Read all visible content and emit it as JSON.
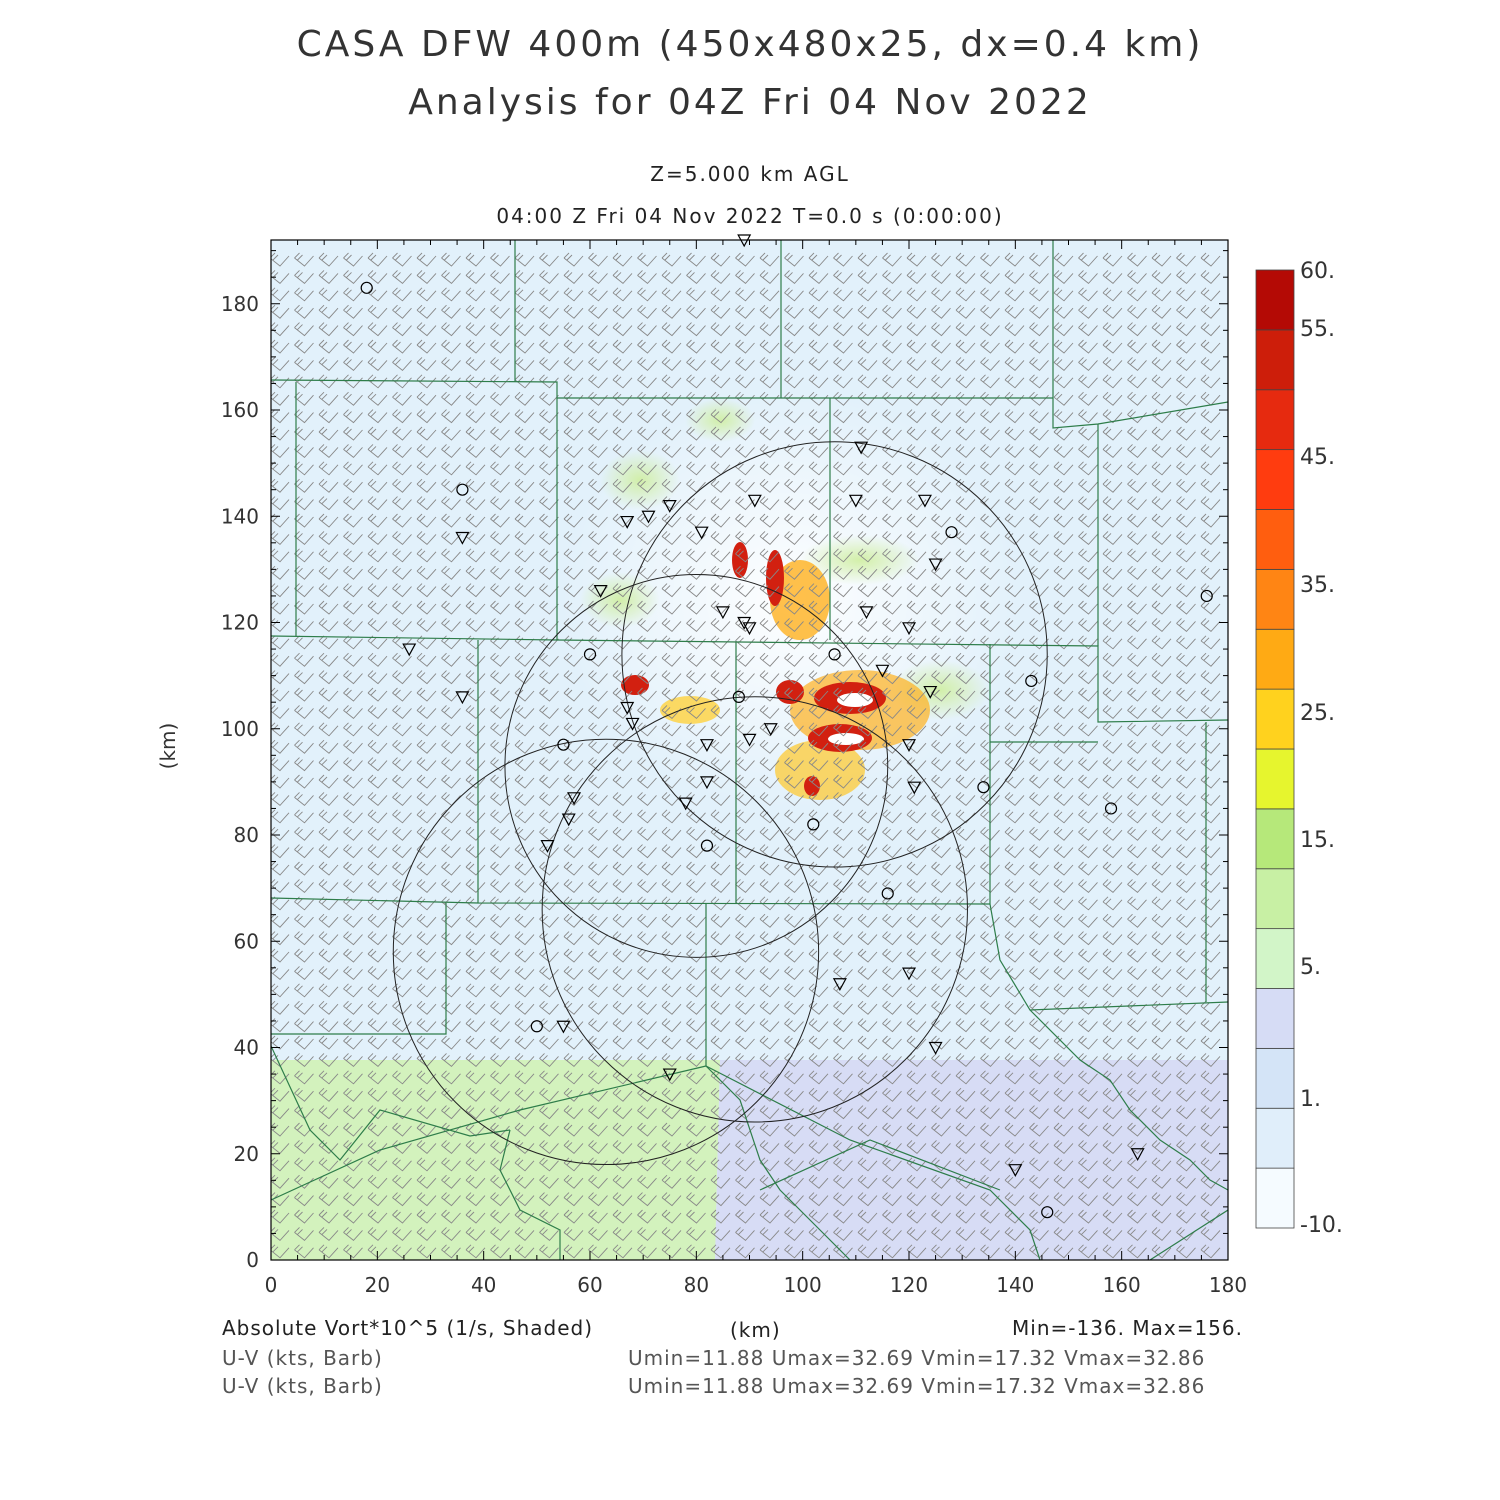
{
  "header": {
    "title_line1": "CASA DFW 400m (450x480x25, dx=0.4 km)",
    "title_line2": "Analysis for 04Z Fri 04 Nov 2022",
    "level": "Z=5.000 km AGL",
    "valid_time": "04:00 Z Fri 04 Nov 2022    T=0.0 s (0:00:00)"
  },
  "axes": {
    "x_label": "(km)",
    "y_label": "(km)",
    "x_ticks": [
      "0",
      "20",
      "40",
      "60",
      "80",
      "100",
      "120",
      "140",
      "160",
      "180"
    ],
    "y_ticks": [
      "0",
      "20",
      "40",
      "60",
      "80",
      "100",
      "120",
      "140",
      "160",
      "180"
    ],
    "x_range": [
      0,
      180
    ],
    "y_range": [
      0,
      192
    ]
  },
  "colorbar": {
    "labels": [
      "60.",
      "55.",
      "45.",
      "35.",
      "25.",
      "15.",
      "5.",
      "1.",
      "-10."
    ],
    "colors": [
      "#f5fbff",
      "#e0eefa",
      "#d4e4f7",
      "#d6dcf5",
      "#d2f5c8",
      "#c8f0a4",
      "#b6e87a",
      "#e6f52e",
      "#ffd21e",
      "#ffaa14",
      "#ff8514",
      "#ff5e0f",
      "#ff3c0f",
      "#e62a0f",
      "#cd1e0a",
      "#b40a05"
    ]
  },
  "footer": {
    "field": "Absolute Vort*10^5 (1/s, Shaded)",
    "x_unit": "(km)",
    "minmax": "Min=-136. Max=156.",
    "barb_label_1": "U-V (kts, Barb)",
    "barb_stats_1": "Umin=11.88 Umax=32.69 Vmin=17.32 Vmax=32.86",
    "barb_label_2": "U-V (kts, Barb)",
    "barb_stats_2": "Umin=11.88 Umax=32.69 Vmin=17.32 Vmax=32.86"
  },
  "map": {
    "radar_rings": [
      {
        "cx": 80,
        "cy": 93,
        "r": 36
      },
      {
        "cx": 63,
        "cy": 58,
        "r": 40
      },
      {
        "cx": 91,
        "cy": 66,
        "r": 40
      },
      {
        "cx": 106,
        "cy": 114,
        "r": 40
      }
    ],
    "stations_triangle": [
      [
        89,
        192
      ],
      [
        36,
        136
      ],
      [
        26,
        115
      ],
      [
        36,
        106
      ],
      [
        62,
        126
      ],
      [
        67,
        139
      ],
      [
        71,
        140
      ],
      [
        75,
        142
      ],
      [
        81,
        137
      ],
      [
        91,
        143
      ],
      [
        85,
        122
      ],
      [
        89,
        120
      ],
      [
        90,
        119
      ],
      [
        110,
        143
      ],
      [
        111,
        153
      ],
      [
        123,
        143
      ],
      [
        125,
        131
      ],
      [
        112,
        122
      ],
      [
        120,
        119
      ],
      [
        115,
        111
      ],
      [
        124,
        107
      ],
      [
        67,
        104
      ],
      [
        68,
        101
      ],
      [
        82,
        97
      ],
      [
        90,
        98
      ],
      [
        94,
        100
      ],
      [
        57,
        87
      ],
      [
        56,
        83
      ],
      [
        52,
        78
      ],
      [
        78,
        86
      ],
      [
        82,
        90
      ],
      [
        120,
        97
      ],
      [
        121,
        89
      ],
      [
        55,
        44
      ],
      [
        75,
        35
      ],
      [
        107,
        52
      ],
      [
        120,
        54
      ],
      [
        125,
        40
      ],
      [
        140,
        17
      ],
      [
        163,
        20
      ]
    ],
    "stations_circle": [
      [
        18,
        183
      ],
      [
        36,
        145
      ],
      [
        128,
        137
      ],
      [
        176,
        125
      ],
      [
        60,
        114
      ],
      [
        106,
        114
      ],
      [
        143,
        109
      ],
      [
        88,
        106
      ],
      [
        55,
        97
      ],
      [
        134,
        89
      ],
      [
        102,
        82
      ],
      [
        82,
        78
      ],
      [
        116,
        69
      ],
      [
        158,
        85
      ],
      [
        50,
        44
      ],
      [
        146,
        9
      ]
    ]
  },
  "chart_data": {
    "type": "heatmap",
    "field": "Absolute Vort*10^5 (1/s, Shaded)",
    "min": -136,
    "max": 156,
    "color_levels": [
      -10,
      1,
      5,
      15,
      25,
      35,
      45,
      55,
      60
    ],
    "xlabel": "(km)",
    "ylabel": "(km)",
    "xlim": [
      0,
      180
    ],
    "ylim": [
      0,
      192
    ],
    "features": [
      {
        "region": "background",
        "value_range": [
          -10,
          1
        ]
      },
      {
        "region": "southwest lower-left",
        "value_range": [
          5,
          15
        ]
      },
      {
        "region": "southeast lower-right",
        "value_range": [
          1,
          5
        ]
      },
      {
        "region": "central storm cluster",
        "x_range": [
          60,
          125
        ],
        "y_range": [
          80,
          160
        ],
        "value_range": [
          -10,
          60
        ]
      }
    ],
    "wind_barbs": {
      "umin": 11.88,
      "umax": 32.69,
      "vmin": 17.32,
      "vmax": 32.86,
      "units": "kts"
    }
  }
}
